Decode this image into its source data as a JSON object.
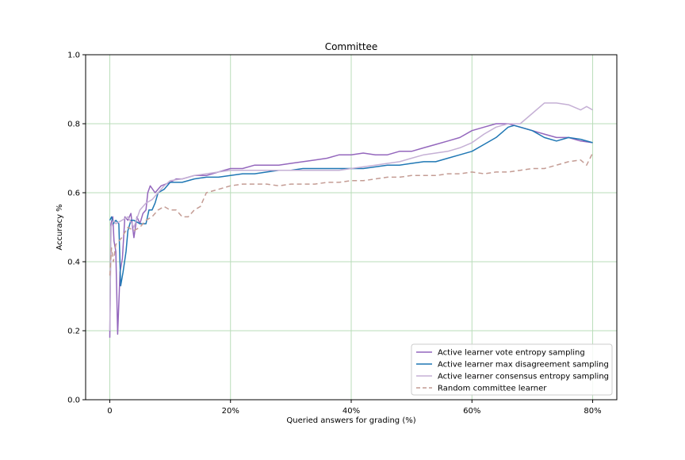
{
  "chart_data": {
    "type": "line",
    "title": "Committee",
    "xlabel": "Queried answers for grading (%)",
    "ylabel": "Accuracy %",
    "xlim": [
      -4,
      84
    ],
    "ylim": [
      0.0,
      1.0
    ],
    "xticks": [
      {
        "value": 0,
        "label": "0"
      },
      {
        "value": 20,
        "label": "20%"
      },
      {
        "value": 40,
        "label": "40%"
      },
      {
        "value": 60,
        "label": "60%"
      },
      {
        "value": 80,
        "label": "80%"
      }
    ],
    "yticks": [
      {
        "value": 0.0,
        "label": "0.0"
      },
      {
        "value": 0.2,
        "label": "0.2"
      },
      {
        "value": 0.4,
        "label": "0.4"
      },
      {
        "value": 0.6,
        "label": "0.6"
      },
      {
        "value": 0.8,
        "label": "0.8"
      },
      {
        "value": 1.0,
        "label": "1.0"
      }
    ],
    "grid": true,
    "grid_color": "#b9dcb9",
    "legend_position": "lower-right",
    "series": [
      {
        "name": "Active learner vote entropy sampling",
        "color": "#9467bd",
        "dash": "solid",
        "points": [
          [
            0,
            0.18
          ],
          [
            0.2,
            0.51
          ],
          [
            0.5,
            0.53
          ],
          [
            0.7,
            0.46
          ],
          [
            1.0,
            0.43
          ],
          [
            1.3,
            0.19
          ],
          [
            1.7,
            0.37
          ],
          [
            2.1,
            0.41
          ],
          [
            2.5,
            0.53
          ],
          [
            3.0,
            0.52
          ],
          [
            3.5,
            0.54
          ],
          [
            4.0,
            0.47
          ],
          [
            4.5,
            0.53
          ],
          [
            5.0,
            0.51
          ],
          [
            5.5,
            0.54
          ],
          [
            6.0,
            0.55
          ],
          [
            6.3,
            0.6
          ],
          [
            6.7,
            0.62
          ],
          [
            7.5,
            0.6
          ],
          [
            8.5,
            0.62
          ],
          [
            10,
            0.63
          ],
          [
            11,
            0.64
          ],
          [
            12,
            0.64
          ],
          [
            14,
            0.65
          ],
          [
            16,
            0.65
          ],
          [
            18,
            0.66
          ],
          [
            20,
            0.67
          ],
          [
            22,
            0.67
          ],
          [
            24,
            0.68
          ],
          [
            26,
            0.68
          ],
          [
            28,
            0.68
          ],
          [
            30,
            0.685
          ],
          [
            32,
            0.69
          ],
          [
            34,
            0.695
          ],
          [
            36,
            0.7
          ],
          [
            38,
            0.71
          ],
          [
            40,
            0.71
          ],
          [
            42,
            0.715
          ],
          [
            44,
            0.71
          ],
          [
            46,
            0.71
          ],
          [
            48,
            0.72
          ],
          [
            50,
            0.72
          ],
          [
            52,
            0.73
          ],
          [
            54,
            0.74
          ],
          [
            56,
            0.75
          ],
          [
            58,
            0.76
          ],
          [
            60,
            0.78
          ],
          [
            62,
            0.79
          ],
          [
            64,
            0.8
          ],
          [
            66,
            0.8
          ],
          [
            68,
            0.79
          ],
          [
            70,
            0.78
          ],
          [
            72,
            0.77
          ],
          [
            74,
            0.76
          ],
          [
            76,
            0.76
          ],
          [
            78,
            0.75
          ],
          [
            80,
            0.745
          ]
        ]
      },
      {
        "name": "Active learner max disagreement sampling",
        "color": "#1f77b4",
        "dash": "solid",
        "points": [
          [
            0,
            0.52
          ],
          [
            0.3,
            0.53
          ],
          [
            0.6,
            0.51
          ],
          [
            1.0,
            0.52
          ],
          [
            1.5,
            0.51
          ],
          [
            1.8,
            0.33
          ],
          [
            2.2,
            0.37
          ],
          [
            2.7,
            0.43
          ],
          [
            3.0,
            0.49
          ],
          [
            3.5,
            0.52
          ],
          [
            4,
            0.52
          ],
          [
            5,
            0.51
          ],
          [
            6,
            0.51
          ],
          [
            6.5,
            0.55
          ],
          [
            7,
            0.55
          ],
          [
            7.5,
            0.57
          ],
          [
            8,
            0.6
          ],
          [
            9,
            0.61
          ],
          [
            10,
            0.63
          ],
          [
            12,
            0.63
          ],
          [
            14,
            0.64
          ],
          [
            16,
            0.645
          ],
          [
            18,
            0.645
          ],
          [
            20,
            0.65
          ],
          [
            22,
            0.655
          ],
          [
            24,
            0.655
          ],
          [
            26,
            0.66
          ],
          [
            28,
            0.665
          ],
          [
            30,
            0.665
          ],
          [
            32,
            0.67
          ],
          [
            34,
            0.67
          ],
          [
            36,
            0.67
          ],
          [
            38,
            0.67
          ],
          [
            40,
            0.67
          ],
          [
            42,
            0.67
          ],
          [
            44,
            0.675
          ],
          [
            46,
            0.68
          ],
          [
            48,
            0.68
          ],
          [
            50,
            0.685
          ],
          [
            52,
            0.69
          ],
          [
            54,
            0.69
          ],
          [
            56,
            0.7
          ],
          [
            58,
            0.71
          ],
          [
            60,
            0.72
          ],
          [
            62,
            0.74
          ],
          [
            64,
            0.76
          ],
          [
            66,
            0.79
          ],
          [
            67,
            0.795
          ],
          [
            68,
            0.79
          ],
          [
            70,
            0.78
          ],
          [
            72,
            0.76
          ],
          [
            74,
            0.75
          ],
          [
            76,
            0.76
          ],
          [
            78,
            0.755
          ],
          [
            80,
            0.745
          ]
        ]
      },
      {
        "name": "Active learner consensus entropy sampling",
        "color": "#c5b0d5",
        "dash": "solid",
        "points": [
          [
            0,
            0.2
          ],
          [
            0.2,
            0.5
          ],
          [
            0.6,
            0.52
          ],
          [
            1.0,
            0.51
          ],
          [
            2,
            0.52
          ],
          [
            3,
            0.53
          ],
          [
            4,
            0.5
          ],
          [
            5,
            0.55
          ],
          [
            6,
            0.57
          ],
          [
            7,
            0.58
          ],
          [
            8,
            0.6
          ],
          [
            9,
            0.62
          ],
          [
            10,
            0.635
          ],
          [
            12,
            0.64
          ],
          [
            14,
            0.65
          ],
          [
            16,
            0.655
          ],
          [
            18,
            0.66
          ],
          [
            20,
            0.665
          ],
          [
            22,
            0.665
          ],
          [
            24,
            0.665
          ],
          [
            26,
            0.665
          ],
          [
            28,
            0.665
          ],
          [
            30,
            0.665
          ],
          [
            32,
            0.665
          ],
          [
            34,
            0.665
          ],
          [
            36,
            0.665
          ],
          [
            38,
            0.665
          ],
          [
            40,
            0.67
          ],
          [
            42,
            0.675
          ],
          [
            44,
            0.68
          ],
          [
            46,
            0.685
          ],
          [
            48,
            0.69
          ],
          [
            50,
            0.7
          ],
          [
            52,
            0.71
          ],
          [
            54,
            0.715
          ],
          [
            56,
            0.72
          ],
          [
            58,
            0.73
          ],
          [
            60,
            0.745
          ],
          [
            62,
            0.77
          ],
          [
            64,
            0.79
          ],
          [
            66,
            0.8
          ],
          [
            68,
            0.8
          ],
          [
            70,
            0.83
          ],
          [
            72,
            0.86
          ],
          [
            74,
            0.86
          ],
          [
            76,
            0.855
          ],
          [
            78,
            0.84
          ],
          [
            79,
            0.85
          ],
          [
            80,
            0.84
          ]
        ]
      },
      {
        "name": "Random committee learner",
        "color": "#c49c94",
        "dash": "dashed",
        "points": [
          [
            0,
            0.36
          ],
          [
            0.3,
            0.44
          ],
          [
            0.6,
            0.4
          ],
          [
            1,
            0.45
          ],
          [
            2,
            0.47
          ],
          [
            3,
            0.5
          ],
          [
            4,
            0.49
          ],
          [
            5,
            0.5
          ],
          [
            6,
            0.52
          ],
          [
            7,
            0.53
          ],
          [
            8,
            0.55
          ],
          [
            9,
            0.56
          ],
          [
            10,
            0.55
          ],
          [
            11,
            0.55
          ],
          [
            12,
            0.53
          ],
          [
            13,
            0.53
          ],
          [
            14,
            0.55
          ],
          [
            15,
            0.56
          ],
          [
            16,
            0.6
          ],
          [
            18,
            0.61
          ],
          [
            20,
            0.62
          ],
          [
            22,
            0.625
          ],
          [
            24,
            0.625
          ],
          [
            26,
            0.625
          ],
          [
            28,
            0.62
          ],
          [
            30,
            0.625
          ],
          [
            32,
            0.625
          ],
          [
            34,
            0.625
          ],
          [
            36,
            0.63
          ],
          [
            38,
            0.63
          ],
          [
            40,
            0.635
          ],
          [
            42,
            0.635
          ],
          [
            44,
            0.64
          ],
          [
            46,
            0.645
          ],
          [
            48,
            0.645
          ],
          [
            50,
            0.65
          ],
          [
            52,
            0.65
          ],
          [
            54,
            0.65
          ],
          [
            56,
            0.655
          ],
          [
            58,
            0.655
          ],
          [
            60,
            0.66
          ],
          [
            62,
            0.655
          ],
          [
            64,
            0.66
          ],
          [
            66,
            0.66
          ],
          [
            68,
            0.665
          ],
          [
            70,
            0.67
          ],
          [
            72,
            0.67
          ],
          [
            74,
            0.68
          ],
          [
            76,
            0.69
          ],
          [
            78,
            0.695
          ],
          [
            79,
            0.68
          ],
          [
            80,
            0.715
          ]
        ]
      }
    ]
  }
}
